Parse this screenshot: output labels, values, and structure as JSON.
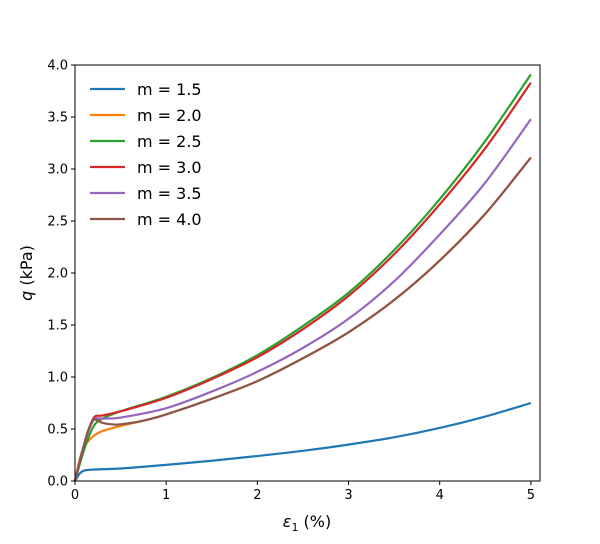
{
  "chart_data": {
    "type": "line",
    "title": "",
    "xlabel": {
      "symbol": "ε",
      "sub": "1",
      "unit": " (%)"
    },
    "ylabel": {
      "symbol": "q",
      "unit": " (kPa)"
    },
    "xlim": [
      0,
      5.1
    ],
    "ylim": [
      0,
      4.0
    ],
    "xticks": [
      0,
      1,
      2,
      3,
      4,
      5
    ],
    "xtick_labels": [
      "0",
      "1",
      "2",
      "3",
      "4",
      "5"
    ],
    "yticks": [
      0,
      0.5,
      1.0,
      1.5,
      2.0,
      2.5,
      3.0,
      3.5,
      4.0
    ],
    "ytick_labels": [
      "0.0",
      "0.5",
      "1.0",
      "1.5",
      "2.0",
      "2.5",
      "3.0",
      "3.5",
      "4.0"
    ],
    "grid": false,
    "legend_position": "top-left",
    "series": [
      {
        "name": "m = 1.5",
        "color": "#1f77b4",
        "x": [
          0,
          0.05,
          0.1,
          0.2,
          0.5,
          1,
          1.5,
          2,
          2.5,
          3,
          3.5,
          4,
          4.5,
          5
        ],
        "y": [
          0,
          0.07,
          0.1,
          0.11,
          0.12,
          0.155,
          0.195,
          0.24,
          0.29,
          0.35,
          0.42,
          0.51,
          0.62,
          0.75
        ]
      },
      {
        "name": "m = 2.0",
        "color": "#ff7f0e",
        "x": [
          0,
          0.05,
          0.1,
          0.2,
          0.3,
          0.5,
          0.75,
          1,
          1.5,
          2,
          2.5,
          3,
          3.5,
          4,
          4.5,
          5
        ],
        "y": [
          0,
          0.2,
          0.33,
          0.43,
          0.48,
          0.53,
          0.58,
          0.64,
          0.79,
          0.96,
          1.18,
          1.43,
          1.74,
          2.12,
          2.57,
          3.11
        ]
      },
      {
        "name": "m = 2.5",
        "color": "#2ca02c",
        "x": [
          0,
          0.1,
          0.2,
          0.3,
          0.5,
          1,
          1.5,
          2,
          2.5,
          3,
          3.5,
          4,
          4.5,
          5
        ],
        "y": [
          0,
          0.3,
          0.52,
          0.6,
          0.67,
          0.81,
          0.99,
          1.21,
          1.49,
          1.81,
          2.22,
          2.71,
          3.27,
          3.91
        ]
      },
      {
        "name": "m = 3.0",
        "color": "#d62728",
        "x": [
          0,
          0.1,
          0.2,
          0.3,
          0.5,
          1,
          1.5,
          2,
          2.5,
          3,
          3.5,
          4,
          4.5,
          5
        ],
        "y": [
          0,
          0.35,
          0.6,
          0.63,
          0.67,
          0.8,
          0.98,
          1.19,
          1.46,
          1.78,
          2.18,
          2.66,
          3.2,
          3.83
        ]
      },
      {
        "name": "m = 3.5",
        "color": "#9467bd",
        "x": [
          0,
          0.1,
          0.2,
          0.3,
          0.5,
          1,
          1.5,
          2,
          2.5,
          3,
          3.5,
          4,
          4.5,
          5
        ],
        "y": [
          0,
          0.35,
          0.58,
          0.6,
          0.61,
          0.7,
          0.86,
          1.05,
          1.28,
          1.56,
          1.92,
          2.37,
          2.87,
          3.48
        ]
      },
      {
        "name": "m = 4.0",
        "color": "#8c564b",
        "x": [
          0,
          0.1,
          0.15,
          0.2,
          0.25,
          0.3,
          0.4,
          0.5,
          0.75,
          1,
          1.5,
          2,
          2.5,
          3,
          3.5,
          4,
          4.5,
          5
        ],
        "y": [
          0,
          0.35,
          0.5,
          0.59,
          0.58,
          0.56,
          0.545,
          0.545,
          0.58,
          0.64,
          0.79,
          0.96,
          1.18,
          1.43,
          1.74,
          2.12,
          2.57,
          3.11
        ]
      }
    ]
  }
}
